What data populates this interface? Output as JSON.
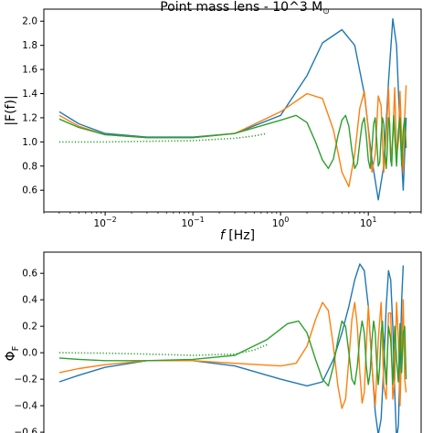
{
  "chart_data": [
    {
      "type": "line",
      "title": "Point mass lens -  10^3 M",
      "title_symbol": "⊙",
      "xlabel_italic": "f",
      "xlabel_unit": "[Hz]",
      "ylabel": "|F(f)|",
      "xscale": "log",
      "xlim": [
        0.002,
        40
      ],
      "ylim": [
        0.42,
        2.1
      ],
      "xticks": [
        {
          "base": "10",
          "exp": "−2",
          "value": 0.01
        },
        {
          "base": "10",
          "exp": "−1",
          "value": 0.1
        },
        {
          "base": "10",
          "exp": "0",
          "value": 1
        },
        {
          "base": "10",
          "exp": "1",
          "value": 10
        }
      ],
      "yticks": [
        "0.6",
        "0.8",
        "1.0",
        "1.2",
        "1.4",
        "1.6",
        "1.8",
        "2.0"
      ],
      "ytick_values": [
        0.6,
        0.8,
        1.0,
        1.2,
        1.4,
        1.6,
        1.8,
        2.0
      ],
      "grid": false,
      "series": [
        {
          "color": "#1f77b4",
          "style": "solid",
          "x": [
            0.003,
            0.005,
            0.01,
            0.03,
            0.1,
            0.3,
            1,
            2,
            3,
            5,
            7,
            9,
            11,
            13,
            15,
            17,
            19,
            21,
            23,
            25,
            27
          ],
          "y": [
            1.25,
            1.15,
            1.07,
            1.04,
            1.04,
            1.07,
            1.22,
            1.55,
            1.82,
            1.93,
            1.8,
            1.4,
            0.85,
            0.52,
            0.8,
            1.5,
            2.02,
            1.8,
            1.1,
            0.6,
            1.2
          ]
        },
        {
          "color": "#ff7f0e",
          "style": "solid",
          "x": [
            0.003,
            0.005,
            0.01,
            0.03,
            0.1,
            0.3,
            1,
            2,
            3,
            4,
            5,
            6,
            7,
            8,
            9,
            10,
            11,
            12,
            13,
            14,
            15,
            16,
            17,
            18,
            19,
            20,
            21,
            22,
            23,
            24,
            25,
            26,
            27
          ],
          "y": [
            1.22,
            1.13,
            1.06,
            1.035,
            1.035,
            1.07,
            1.25,
            1.4,
            1.36,
            1.1,
            0.75,
            0.63,
            0.9,
            1.28,
            1.42,
            1.1,
            0.75,
            0.9,
            1.38,
            1.3,
            0.75,
            1.05,
            1.45,
            0.85,
            1.05,
            1.45,
            0.9,
            1.0,
            1.42,
            1.0,
            0.75,
            1.2,
            1.47
          ]
        },
        {
          "color": "#2ca02c",
          "style": "solid",
          "x": [
            0.003,
            0.005,
            0.01,
            0.03,
            0.1,
            0.3,
            1,
            1.5,
            2,
            2.5,
            3,
            3.5,
            4,
            4.5,
            5,
            5.5,
            6,
            6.5,
            7,
            7.5,
            8,
            8.5,
            9,
            9.5,
            10,
            10.5,
            11,
            11.5,
            12,
            12.5,
            13,
            13.5,
            14,
            14.5,
            15,
            15.5,
            16,
            16.5,
            17,
            17.5,
            18,
            18.5,
            19,
            19.5,
            20,
            21,
            22,
            23,
            24,
            25,
            26,
            27
          ],
          "y": [
            1.19,
            1.12,
            1.06,
            1.035,
            1.035,
            1.07,
            1.18,
            1.22,
            1.16,
            1.0,
            0.85,
            0.78,
            0.86,
            1.05,
            1.18,
            1.22,
            1.13,
            0.93,
            0.78,
            0.82,
            1.0,
            1.15,
            1.2,
            1.05,
            0.85,
            0.78,
            0.95,
            1.15,
            1.2,
            1.0,
            0.8,
            0.83,
            1.05,
            1.2,
            1.15,
            0.9,
            0.78,
            0.95,
            1.2,
            1.15,
            0.85,
            0.8,
            1.05,
            1.22,
            1.05,
            0.8,
            1.1,
            1.2,
            0.8,
            1.1,
            1.2,
            0.95
          ]
        },
        {
          "color": "#2ca02c",
          "style": "dotted",
          "x": [
            0.003,
            0.01,
            0.03,
            0.1,
            0.3,
            0.5,
            0.7
          ],
          "y": [
            1.0,
            1.0,
            1.005,
            1.01,
            1.03,
            1.05,
            1.07
          ]
        }
      ]
    },
    {
      "type": "line",
      "ylabel": "Φ",
      "ylabel_sub": "F",
      "xscale": "log",
      "xlim": [
        0.002,
        40
      ],
      "ylim": [
        -0.62,
        0.76
      ],
      "yticks": [
        "−0.6",
        "−0.4",
        "−0.2",
        "0.0",
        "0.2",
        "0.4",
        "0.6"
      ],
      "ytick_values": [
        -0.6,
        -0.4,
        -0.2,
        0.0,
        0.2,
        0.4,
        0.6
      ],
      "grid": false,
      "series": [
        {
          "color": "#1f77b4",
          "style": "solid",
          "x": [
            0.003,
            0.005,
            0.01,
            0.03,
            0.1,
            0.3,
            1,
            2,
            3,
            4,
            5,
            6,
            7,
            8,
            9,
            10,
            11,
            12,
            13,
            14,
            15,
            16,
            17,
            18,
            19,
            20,
            21,
            22,
            23,
            24,
            25
          ],
          "y": [
            -0.22,
            -0.17,
            -0.11,
            -0.06,
            -0.06,
            -0.1,
            -0.2,
            -0.25,
            -0.22,
            -0.05,
            0.15,
            0.35,
            0.55,
            0.67,
            0.62,
            0.35,
            -0.1,
            -0.45,
            -0.62,
            -0.5,
            -0.1,
            0.35,
            0.62,
            0.55,
            0.2,
            -0.3,
            -0.65,
            -0.55,
            -0.1,
            0.4,
            0.66
          ]
        },
        {
          "color": "#ff7f0e",
          "style": "solid",
          "x": [
            0.003,
            0.005,
            0.01,
            0.03,
            0.1,
            0.3,
            1,
            1.5,
            2,
            2.5,
            3,
            3.5,
            4,
            4.5,
            5,
            5.5,
            6,
            6.5,
            7,
            7.5,
            8,
            8.5,
            9,
            9.5,
            10,
            11,
            12,
            13,
            14,
            15,
            16,
            17,
            18,
            19,
            20,
            21,
            22,
            23,
            24,
            25,
            26,
            27
          ],
          "y": [
            -0.15,
            -0.12,
            -0.09,
            -0.06,
            -0.06,
            -0.08,
            -0.1,
            -0.08,
            0.05,
            0.25,
            0.38,
            0.32,
            0.05,
            -0.25,
            -0.42,
            -0.35,
            -0.05,
            0.25,
            0.38,
            0.2,
            -0.15,
            -0.38,
            -0.3,
            0.05,
            0.35,
            -0.1,
            -0.4,
            0.1,
            0.38,
            -0.25,
            -0.35,
            0.3,
            0.3,
            -0.35,
            -0.2,
            0.38,
            0.1,
            -0.4,
            0.05,
            0.4,
            -0.2,
            -0.3
          ]
        },
        {
          "color": "#2ca02c",
          "style": "solid",
          "x": [
            0.003,
            0.005,
            0.01,
            0.03,
            0.1,
            0.3,
            0.7,
            1.2,
            1.6,
            2,
            2.5,
            3,
            3.5,
            4,
            4.5,
            5,
            5.5,
            6,
            6.5,
            7,
            7.5,
            8,
            8.5,
            9,
            9.5,
            10,
            10.5,
            11,
            11.5,
            12,
            12.5,
            13,
            13.5,
            14,
            14.5,
            15,
            16,
            17,
            18,
            19,
            20,
            21,
            22,
            23,
            24,
            25,
            26,
            27
          ],
          "y": [
            -0.04,
            -0.05,
            -0.06,
            -0.06,
            -0.05,
            -0.02,
            0.1,
            0.22,
            0.24,
            0.15,
            -0.05,
            -0.2,
            -0.25,
            -0.1,
            0.1,
            0.24,
            0.2,
            0.0,
            -0.2,
            -0.24,
            -0.1,
            0.12,
            0.24,
            0.15,
            -0.1,
            -0.24,
            -0.15,
            0.1,
            0.24,
            0.15,
            -0.1,
            -0.24,
            -0.1,
            0.15,
            0.24,
            0.05,
            -0.24,
            0.2,
            0.1,
            -0.24,
            0.2,
            -0.05,
            -0.22,
            0.22,
            -0.15,
            0.15,
            0.2,
            -0.2
          ]
        },
        {
          "color": "#2ca02c",
          "style": "dotted",
          "x": [
            0.003,
            0.01,
            0.03,
            0.1,
            0.3,
            0.5,
            0.7
          ],
          "y": [
            0.0,
            -0.003,
            -0.01,
            -0.02,
            -0.01,
            0.02,
            0.06
          ]
        }
      ]
    }
  ]
}
